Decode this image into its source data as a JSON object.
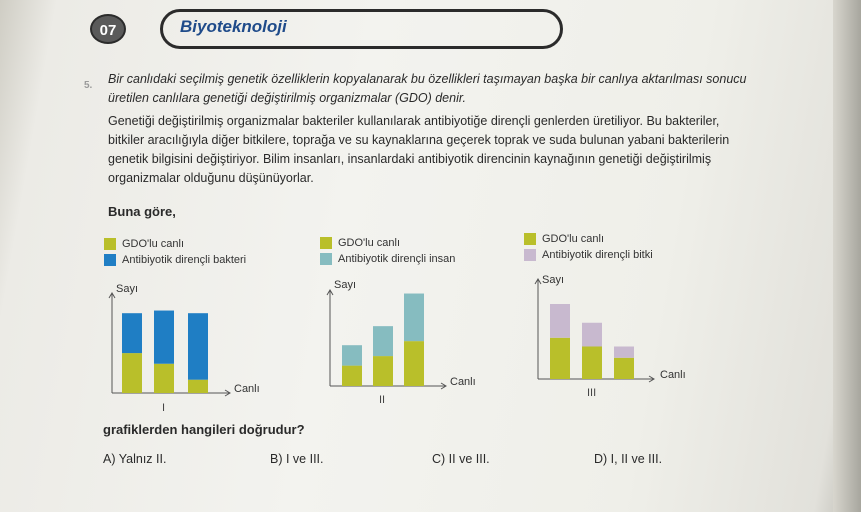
{
  "header": {
    "badge": "07",
    "title": "Biyoteknoloji"
  },
  "question": {
    "number": "5.",
    "paragraph1": "Bir canlıdaki seçilmiş genetik özelliklerin kopyalanarak bu özellikleri taşımayan başka bir canlıya aktarılması sonucu üretilen canlılara genetiği değiştirilmiş organizmalar (GDO) denir.",
    "paragraph2": "Genetiği değiştirilmiş organizmalar bakteriler kullanılarak antibiyotiğe dirençli genlerden üretiliyor. Bu bakteriler, bitkiler aracılığıyla diğer bitkilere, toprağa ve su kaynaklarına geçerek toprak ve suda bulunan yabani bakterilerin genetik bilgisini değiştiriyor. Bilim insanları, insanlardaki antibiyotik direncinin kaynağının genetiği değiştirilmiş organizmalar olduğunu düşünüyorlar.",
    "lead": "Buna göre,",
    "prompt": "grafiklerden hangileri doğrudur?",
    "options": [
      {
        "label": "A) Yalnız II."
      },
      {
        "label": "B) I ve III."
      },
      {
        "label": "C) II ve III."
      },
      {
        "label": "D) I, II ve III."
      }
    ]
  },
  "colors": {
    "gdo": "#b9bf2a",
    "blue": "#1f7ec4",
    "teal": "#86bcc0",
    "lilac": "#c8b9cf"
  },
  "chart_data": [
    {
      "type": "bar",
      "roman": "I",
      "ylabel": "Sayı",
      "xlabel": "Canlı",
      "categories": [
        "",
        "",
        ""
      ],
      "series": [
        {
          "name": "GDO'lu canlı",
          "values": [
            3,
            2.2,
            1
          ]
        },
        {
          "name": "Antibiyotik dirençli bakteri",
          "values": [
            3,
            4,
            5
          ]
        }
      ]
    },
    {
      "type": "bar",
      "roman": "II",
      "ylabel": "Sayı",
      "xlabel": "Canlı",
      "categories": [
        "",
        "",
        ""
      ],
      "series": [
        {
          "name": "GDO'lu canlı",
          "values": [
            1.5,
            2.2,
            3.3
          ]
        },
        {
          "name": "Antibiyotik dirençli insan",
          "values": [
            1.5,
            2.2,
            3.5
          ]
        }
      ]
    },
    {
      "type": "bar",
      "roman": "III",
      "ylabel": "Sayı",
      "xlabel": "Canlı",
      "categories": [
        "",
        "",
        ""
      ],
      "series": [
        {
          "name": "GDO'lu canlı",
          "values": [
            3.3,
            2.6,
            1.7
          ]
        },
        {
          "name": "Antibiyotik dirençli bitki",
          "values": [
            2.7,
            1.9,
            0.9
          ]
        }
      ]
    }
  ]
}
